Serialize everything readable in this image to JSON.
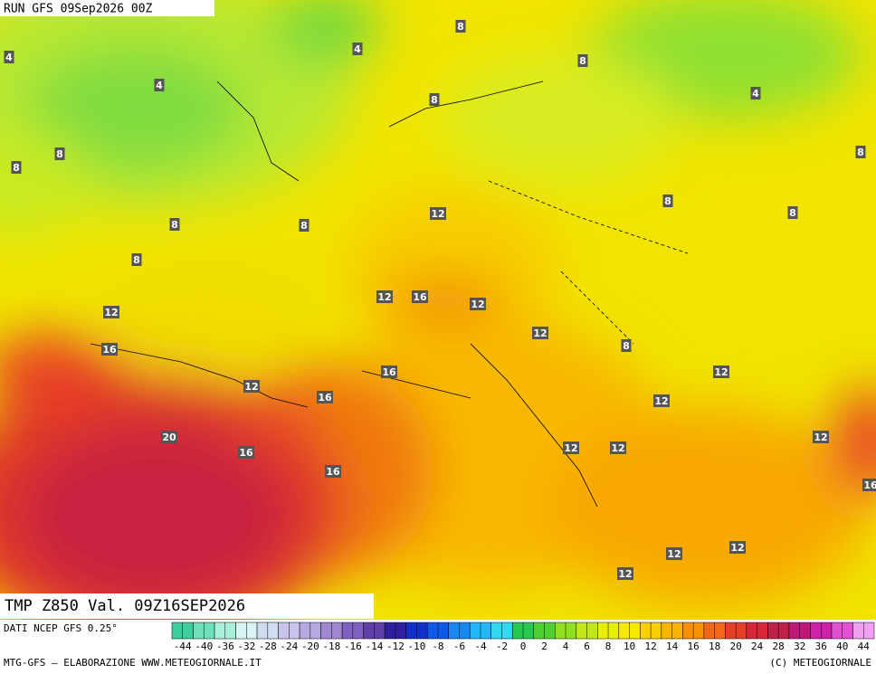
{
  "header": {
    "run": "RUN GFS 09Sep2026 00Z"
  },
  "map": {
    "title": "TMP Z850 Val. 09Z16SEP2026",
    "contour_labels": [
      4,
      4,
      4,
      4,
      8,
      8,
      8,
      8,
      8,
      8,
      8,
      8,
      8,
      8,
      8,
      8,
      12,
      12,
      12,
      12,
      12,
      12,
      12,
      12,
      12,
      12,
      12,
      12,
      12,
      12,
      16,
      16,
      16,
      16,
      16,
      16,
      20,
      16
    ]
  },
  "footer": {
    "source": "DATI NCEP GFS 0.25°",
    "credit": "MTG-GFS — ELABORAZIONE WWW.METEOGIORNALE.IT",
    "copyright": "(C) METEOGIORNALE"
  },
  "scale": {
    "labels": [
      -44,
      -40,
      -36,
      -32,
      -28,
      -24,
      -20,
      -18,
      -16,
      -14,
      -12,
      -10,
      -8,
      -6,
      -4,
      -2,
      0,
      2,
      4,
      6,
      8,
      10,
      12,
      14,
      16,
      18,
      20,
      24,
      28,
      32,
      36,
      40,
      44
    ],
    "colors": [
      "#3ccf9c",
      "#6fe0bc",
      "#a8f0dc",
      "#d8f4f4",
      "#d0dcf0",
      "#c8c4ec",
      "#b8a8e0",
      "#a088d0",
      "#8060c0",
      "#6040a8",
      "#3020a0",
      "#1030c8",
      "#1058e8",
      "#1888f0",
      "#20b8f8",
      "#30d8f0",
      "#28c850",
      "#50d030",
      "#90e020",
      "#c0e818",
      "#e8f000",
      "#f8e800",
      "#f8d000",
      "#f8b400",
      "#f89000",
      "#f06818",
      "#e84028",
      "#d82838",
      "#c02048",
      "#c01878",
      "#d020a8",
      "#e050d0",
      "#f0a0f0"
    ]
  }
}
